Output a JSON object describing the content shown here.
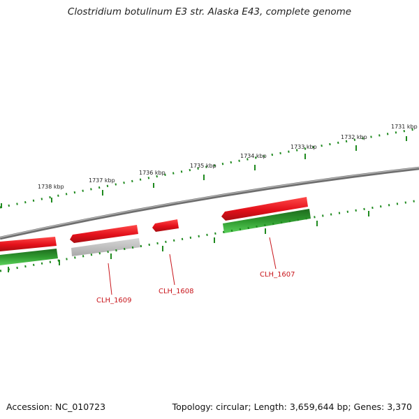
{
  "title": "Clostridium botulinum E3 str. Alaska E43, complete genome",
  "footer": {
    "accession": "Accession: NC_010723",
    "summary": "Topology: circular; Length: 3,659,644 bp; Genes: 3,370"
  },
  "outer_scale": {
    "labels": [
      "1731 kbp",
      "1732 kbp",
      "1733 kbp",
      "1734 kbp",
      "1735 kbp",
      "1736 kbp",
      "1737 kbp",
      "1738 kbp"
    ]
  },
  "genes": [
    {
      "label": "CLH_1607"
    },
    {
      "label": "CLH_1608"
    },
    {
      "label": "CLH_1609"
    }
  ],
  "colors": {
    "forward_gene": "#e8141b",
    "pseudo_gene": "#b8b8b8",
    "cds_track": "#2ea52e",
    "backbone": "#888888",
    "tick": "#1f8a1f",
    "label": "#c8151b"
  }
}
